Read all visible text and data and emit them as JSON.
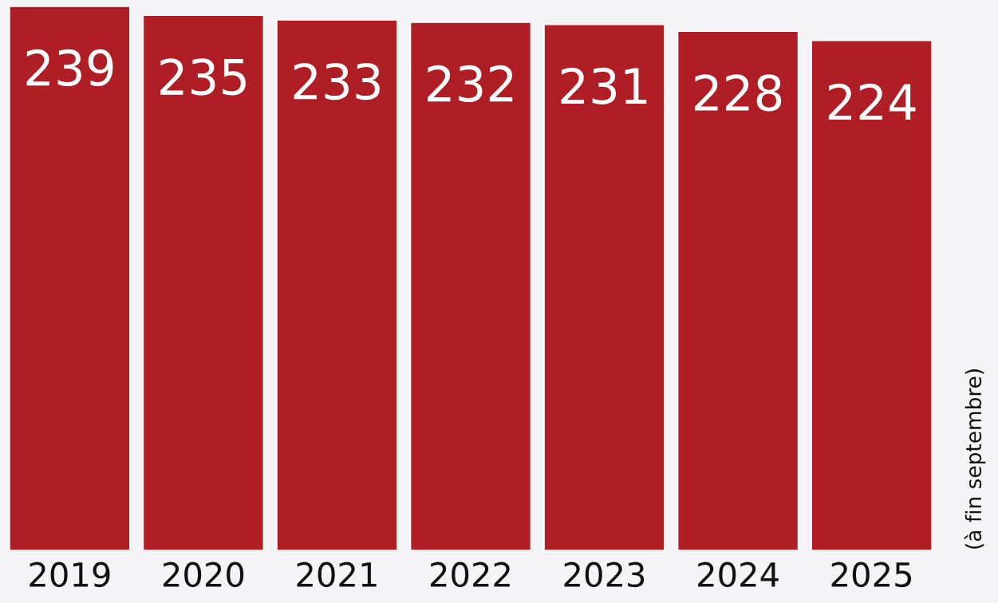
{
  "chart_data": {
    "type": "bar",
    "categories": [
      "2019",
      "2020",
      "2021",
      "2022",
      "2023",
      "2024",
      "2025"
    ],
    "values": [
      239,
      235,
      233,
      232,
      231,
      228,
      224
    ],
    "color": "#ae1e24",
    "data_labels": true,
    "annotations": [
      "(à fin septembre)"
    ]
  }
}
